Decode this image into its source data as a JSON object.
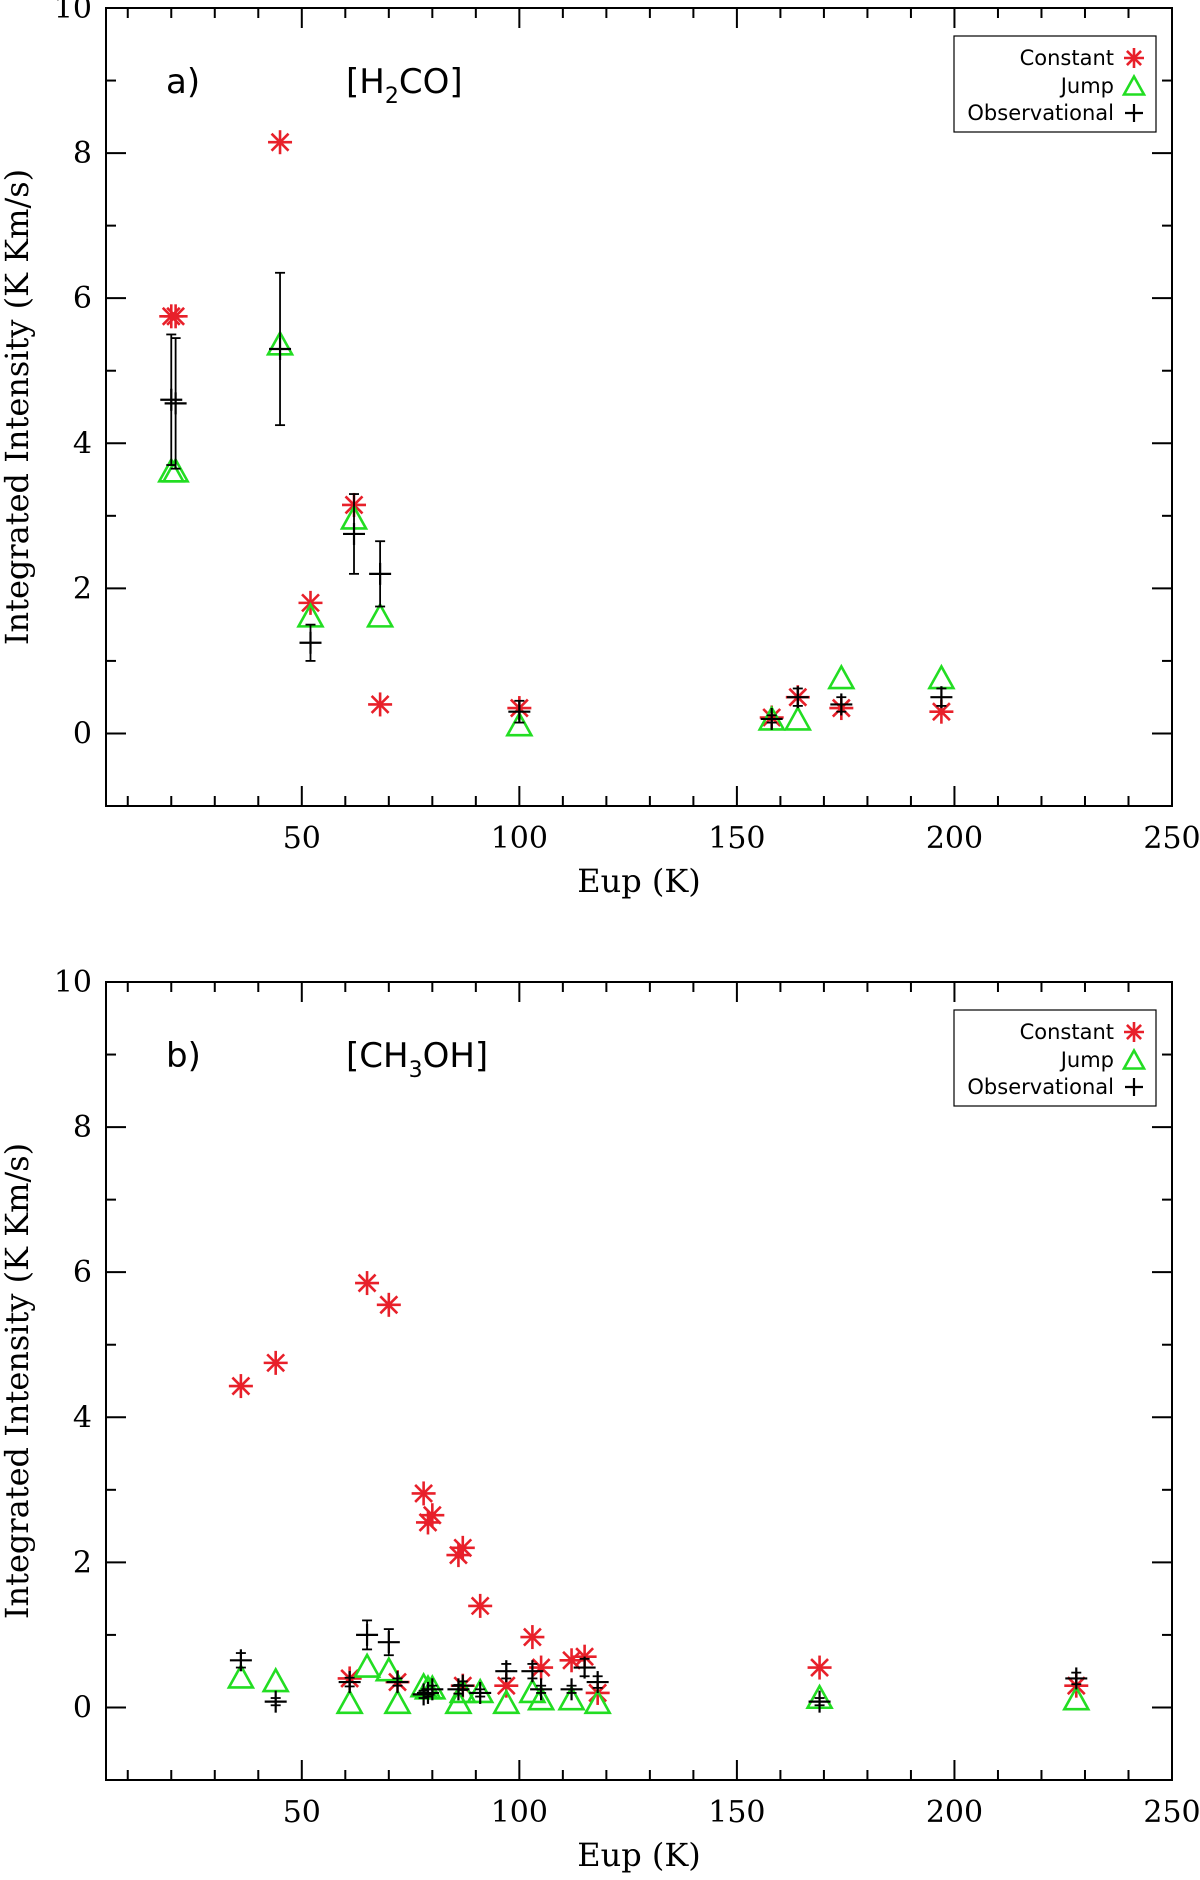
{
  "colors": {
    "constant": "#e8202a",
    "jump": "#22dd22",
    "observational": "#000000",
    "axis": "#000000"
  },
  "chart_data": [
    {
      "type": "scatter",
      "panel_label": "a)",
      "title": {
        "pre": "[H",
        "sub": "2",
        "post": "CO]"
      },
      "xlabel": "Eup (K)",
      "ylabel": "Integrated Intensity (K Km/s)",
      "xlim": [
        5,
        250
      ],
      "ylim": [
        -1,
        10
      ],
      "xticks": [
        50,
        100,
        150,
        200,
        250
      ],
      "yticks": [
        0,
        2,
        4,
        6,
        8,
        10
      ],
      "grid": false,
      "legend": {
        "position": "top-right",
        "entries": [
          "Constant",
          "Jump",
          "Observational"
        ]
      },
      "series": [
        {
          "name": "Constant",
          "marker": "asterisk",
          "x": [
            20,
            21,
            45,
            52,
            62,
            68,
            100,
            158,
            164,
            174,
            197
          ],
          "y": [
            5.75,
            5.75,
            8.15,
            1.8,
            3.15,
            0.4,
            0.35,
            0.22,
            0.5,
            0.35,
            0.3
          ]
        },
        {
          "name": "Jump",
          "marker": "triangle",
          "x": [
            20,
            21,
            45,
            52,
            62,
            68,
            100,
            158,
            164,
            174,
            197
          ],
          "y": [
            3.6,
            3.6,
            5.35,
            1.6,
            2.95,
            1.6,
            0.1,
            0.18,
            0.18,
            0.75,
            0.75
          ]
        },
        {
          "name": "Observational",
          "marker": "plus",
          "x": [
            20,
            21,
            45,
            52,
            62,
            68,
            100,
            158,
            164,
            174,
            197
          ],
          "y": [
            4.6,
            4.55,
            5.3,
            1.25,
            2.75,
            2.2,
            0.3,
            0.2,
            0.5,
            0.4,
            0.5
          ],
          "yerr": [
            0.9,
            0.9,
            1.05,
            0.25,
            0.55,
            0.45,
            0.15,
            0.05,
            0.12,
            0.1,
            0.12
          ]
        }
      ]
    },
    {
      "type": "scatter",
      "panel_label": "b)",
      "title": {
        "pre": "[CH",
        "sub": "3",
        "post": "OH]"
      },
      "xlabel": "Eup (K)",
      "ylabel": "Integrated Intensity (K Km/s)",
      "xlim": [
        5,
        250
      ],
      "ylim": [
        -1,
        10
      ],
      "xticks": [
        50,
        100,
        150,
        200,
        250
      ],
      "yticks": [
        0,
        2,
        4,
        6,
        8,
        10
      ],
      "grid": false,
      "legend": {
        "position": "top-right",
        "entries": [
          "Constant",
          "Jump",
          "Observational"
        ]
      },
      "series": [
        {
          "name": "Constant",
          "marker": "asterisk",
          "x": [
            36,
            44,
            61,
            65,
            70,
            72,
            78,
            79,
            80,
            86,
            87,
            87,
            91,
            97,
            103,
            105,
            112,
            115,
            118,
            169,
            228
          ],
          "y": [
            4.43,
            4.75,
            0.4,
            5.85,
            5.55,
            0.35,
            2.95,
            2.55,
            2.65,
            2.1,
            2.2,
            0.3,
            1.4,
            0.3,
            0.97,
            0.55,
            0.65,
            0.7,
            0.2,
            0.55,
            0.3
          ]
        },
        {
          "name": "Jump",
          "marker": "triangle",
          "x": [
            36,
            44,
            61,
            65,
            70,
            72,
            78,
            79,
            80,
            86,
            87,
            91,
            97,
            103,
            105,
            112,
            118,
            169,
            228
          ],
          "y": [
            0.4,
            0.35,
            0.05,
            0.55,
            0.5,
            0.05,
            0.28,
            0.25,
            0.25,
            0.05,
            0.2,
            0.2,
            0.05,
            0.2,
            0.1,
            0.1,
            0.05,
            0.12,
            0.1
          ]
        },
        {
          "name": "Observational",
          "marker": "plus",
          "x": [
            36,
            44,
            61,
            65,
            70,
            72,
            78,
            79,
            80,
            86,
            87,
            91,
            97,
            103,
            105,
            112,
            115,
            118,
            169,
            228
          ],
          "y": [
            0.65,
            0.08,
            0.35,
            1.0,
            0.9,
            0.35,
            0.18,
            0.2,
            0.25,
            0.25,
            0.3,
            0.2,
            0.5,
            0.5,
            0.25,
            0.25,
            0.55,
            0.35,
            0.08,
            0.4
          ],
          "yerr": [
            0.1,
            0.05,
            0.06,
            0.2,
            0.18,
            0.05,
            0.05,
            0.05,
            0.05,
            0.06,
            0.06,
            0.05,
            0.1,
            0.1,
            0.05,
            0.05,
            0.12,
            0.08,
            0.05,
            0.08
          ]
        }
      ]
    }
  ]
}
